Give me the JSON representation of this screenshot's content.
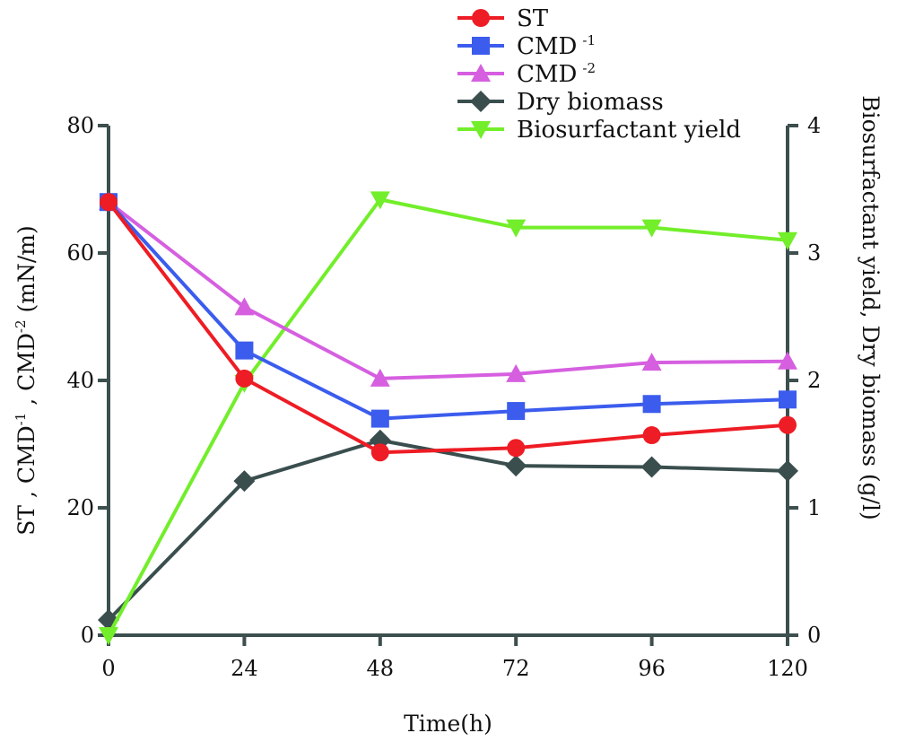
{
  "chart_data": {
    "type": "line",
    "title": "",
    "x": [
      0,
      24,
      48,
      72,
      96,
      120
    ],
    "xlabel": "Time(h)",
    "xlim": [
      0,
      120
    ],
    "x_ticks": [
      "0",
      "24",
      "48",
      "72",
      "96",
      "120"
    ],
    "ylabel_left": {
      "parts": [
        "ST , CMD",
        "-1",
        " ,  CMD",
        "-2",
        " (mN/m)"
      ]
    },
    "ylim_left": [
      0,
      80
    ],
    "y_ticks_left": [
      "0",
      "20",
      "40",
      "60",
      "80"
    ],
    "ylabel_right": "Biosurfactant yield, Dry biomass (g/l)",
    "ylim_right": [
      0,
      4
    ],
    "y_ticks_right": [
      "0",
      "1",
      "2",
      "3",
      "4"
    ],
    "grid": false,
    "legend_position": "top-center",
    "series": [
      {
        "name": "ST",
        "name_sup": "",
        "axis": "left",
        "marker": "circle",
        "color": "#ee1c24",
        "values": [
          68,
          40.3,
          28.7,
          29.4,
          31.4,
          33
        ]
      },
      {
        "name": "CMD",
        "name_sup": "-1",
        "axis": "left",
        "marker": "square",
        "color": "#3b5ced",
        "values": [
          68,
          44.7,
          34,
          35.2,
          36.3,
          37
        ]
      },
      {
        "name": "CMD",
        "name_sup": "-2",
        "axis": "left",
        "marker": "triangle-up",
        "color": "#d65fe0",
        "values": [
          68,
          51.5,
          40.3,
          41,
          42.8,
          43
        ]
      },
      {
        "name": "Dry biomass",
        "name_sup": "",
        "axis": "right",
        "marker": "diamond",
        "color": "#3a4e4e",
        "values": [
          0.12,
          1.21,
          1.53,
          1.33,
          1.32,
          1.29
        ]
      },
      {
        "name": "Biosurfactant yield",
        "name_sup": "",
        "axis": "right",
        "marker": "triangle-down",
        "color": "#72ee2a",
        "values": [
          0.0,
          1.98,
          3.42,
          3.2,
          3.2,
          3.1
        ]
      }
    ]
  }
}
